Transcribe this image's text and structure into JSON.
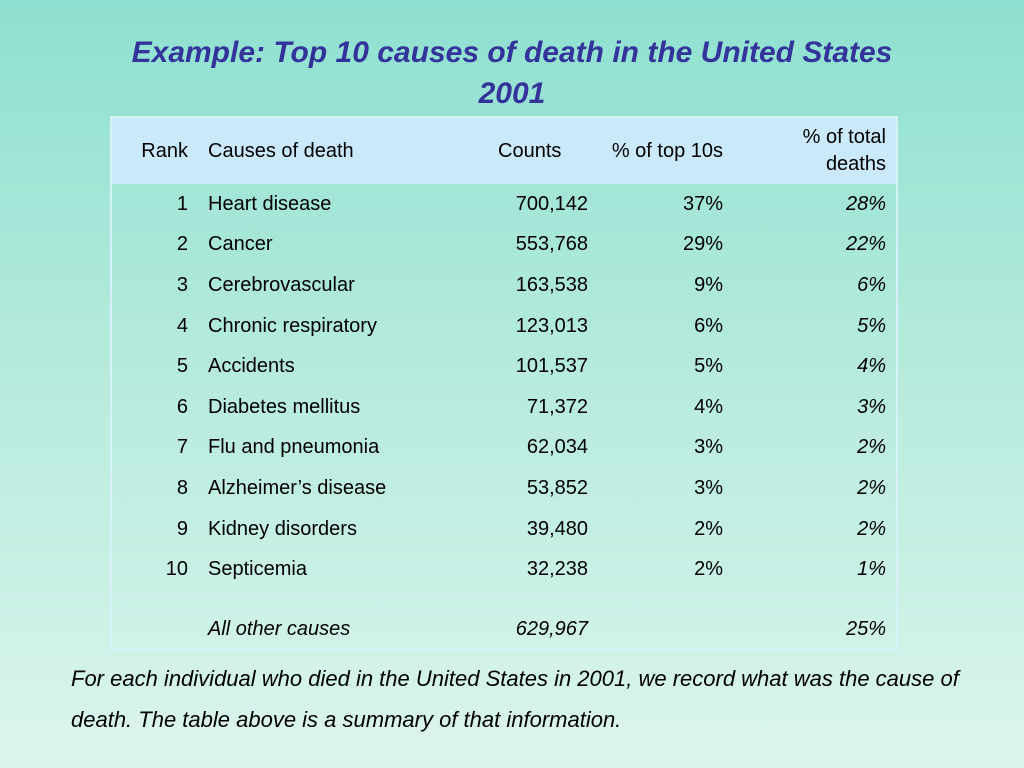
{
  "title": "Example: Top 10 causes of death in the United States 2001",
  "headers": {
    "rank": "Rank",
    "cause": "Causes of death",
    "counts": "Counts",
    "pct_top10": "%  of top 10s",
    "pct_total": "% of total deaths"
  },
  "rows": [
    {
      "rank": "1",
      "cause": "Heart disease",
      "counts": "700,142",
      "pct_top10": "37%",
      "pct_total": "28%"
    },
    {
      "rank": "2",
      "cause": "Cancer",
      "counts": "553,768",
      "pct_top10": "29%",
      "pct_total": "22%"
    },
    {
      "rank": "3",
      "cause": "Cerebrovascular",
      "counts": "163,538",
      "pct_top10": "9%",
      "pct_total": "6%"
    },
    {
      "rank": "4",
      "cause": "Chronic respiratory",
      "counts": "123,013",
      "pct_top10": "6%",
      "pct_total": "5%"
    },
    {
      "rank": "5",
      "cause": "Accidents",
      "counts": "101,537",
      "pct_top10": "5%",
      "pct_total": "4%"
    },
    {
      "rank": "6",
      "cause": "Diabetes mellitus",
      "counts": "71,372",
      "pct_top10": "4%",
      "pct_total": "3%"
    },
    {
      "rank": "7",
      "cause": "Flu and pneumonia",
      "counts": "62,034",
      "pct_top10": "3%",
      "pct_total": "2%"
    },
    {
      "rank": "8",
      "cause": "Alzheimer’s disease",
      "counts": "53,852",
      "pct_top10": "3%",
      "pct_total": "2%"
    },
    {
      "rank": "9",
      "cause": "Kidney disorders",
      "counts": "39,480",
      "pct_top10": "2%",
      "pct_total": "2%"
    },
    {
      "rank": "10",
      "cause": "Septicemia",
      "counts": "32,238",
      "pct_top10": "2%",
      "pct_total": "1%"
    }
  ],
  "other": {
    "cause": "All other causes",
    "counts": "629,967",
    "pct_total": "25%"
  },
  "caption": "For each individual who died in the United States in 2001, we record what was the cause of death. The table above is a summary of that information.",
  "colors": {
    "title": "#33339a",
    "header_bg": "#cbe9fd"
  }
}
